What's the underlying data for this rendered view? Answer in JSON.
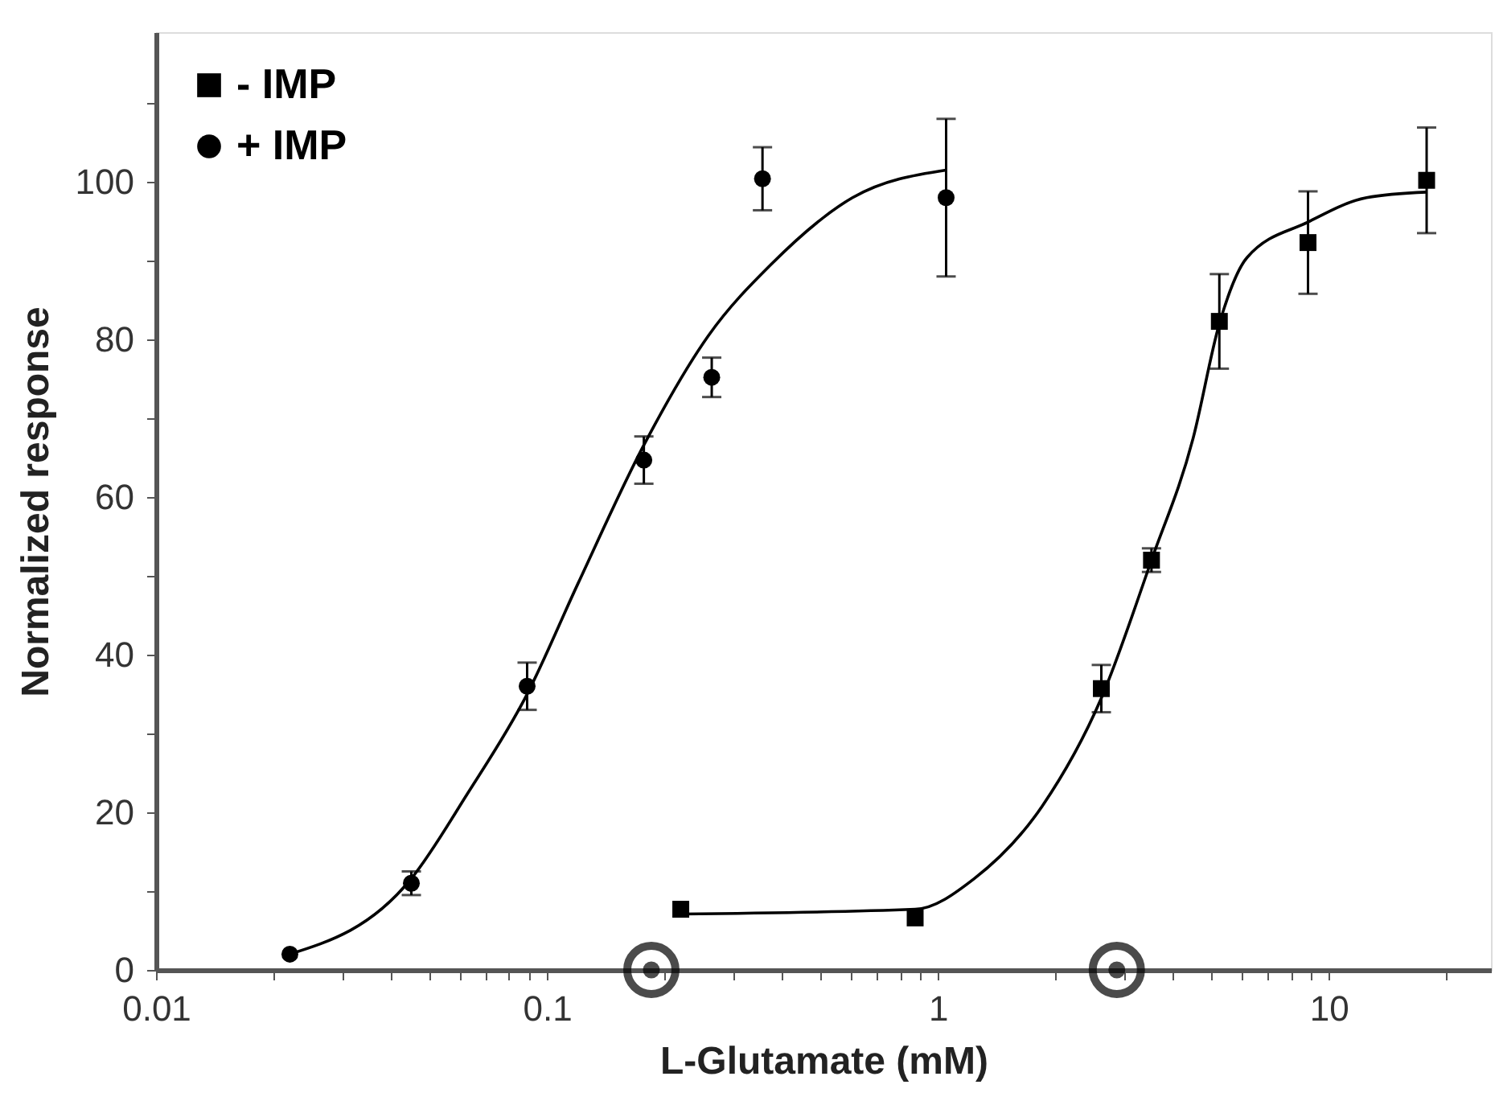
{
  "chart_data": {
    "type": "scatter",
    "xlabel": "L-Glutamate (mM)",
    "ylabel": "Normalized response",
    "log": "x",
    "xlim": [
      0.01,
      26
    ],
    "ylim": [
      0,
      119
    ],
    "xticks": [
      0.01,
      {
        "value": 0.02,
        "label": null
      },
      {
        "value": 0.03,
        "label": null
      },
      {
        "value": 0.04,
        "label": null
      },
      {
        "value": 0.05,
        "label": null
      },
      {
        "value": 0.06,
        "label": null
      },
      {
        "value": 0.07,
        "label": null
      },
      {
        "value": 0.08,
        "label": null
      },
      {
        "value": 0.09,
        "label": null
      },
      0.1,
      {
        "value": 0.2,
        "label": null
      },
      {
        "value": 0.3,
        "label": null
      },
      {
        "value": 0.4,
        "label": null
      },
      {
        "value": 0.5,
        "label": null
      },
      {
        "value": 0.6,
        "label": null
      },
      {
        "value": 0.7,
        "label": null
      },
      {
        "value": 0.8,
        "label": null
      },
      {
        "value": 0.9,
        "label": null
      },
      1,
      {
        "value": 2,
        "label": null
      },
      {
        "value": 3,
        "label": null
      },
      {
        "value": 4,
        "label": null
      },
      {
        "value": 5,
        "label": null
      },
      {
        "value": 6,
        "label": null
      },
      {
        "value": 7,
        "label": null
      },
      {
        "value": 8,
        "label": null
      },
      {
        "value": 9,
        "label": null
      },
      10,
      {
        "value": 20,
        "label": null
      }
    ],
    "yticks": [
      0,
      {
        "value": 10,
        "label": null
      },
      20,
      {
        "value": 30,
        "label": null
      },
      40,
      {
        "value": 50,
        "label": null
      },
      60,
      {
        "value": 70,
        "label": null
      },
      80,
      {
        "value": 90,
        "label": null
      },
      100,
      {
        "value": 110,
        "label": null
      }
    ],
    "grid": false,
    "legend": "top left",
    "series": [
      {
        "name": "- IMP",
        "marker": "square",
        "color": "#000000",
        "x": [
          0.22,
          0.875,
          2.62,
          3.52,
          5.25,
          8.85,
          17.8
        ],
        "values": [
          7.7,
          6.6,
          35.7,
          52,
          82.3,
          92.3,
          100.2
        ],
        "errors": [
          null,
          null,
          3,
          1.5,
          6,
          6.5,
          6.7
        ]
      },
      {
        "name": "+ IMP",
        "marker": "circle",
        "color": "#000000",
        "x": [
          0.022,
          0.045,
          0.089,
          0.177,
          0.264,
          0.356,
          1.05
        ],
        "values": [
          2,
          11,
          36,
          64.7,
          75.2,
          100.4,
          98
        ],
        "errors": [
          null,
          1.5,
          3,
          3,
          2.5,
          4,
          10
        ]
      },
      {
        "type": "line",
        "marker": "none",
        "line_style": "solid",
        "color": "#000000",
        "x": [
          0.22,
          0.875,
          1.24,
          1.85,
          2.62,
          3.52,
          4.5,
          5.25,
          6.18,
          8.85,
          12.5,
          17.8
        ],
        "values": [
          7.1,
          7.7,
          11.6,
          20.8,
          34.5,
          52,
          67.5,
          82,
          90.4,
          94.9,
          98,
          98.7
        ]
      },
      {
        "type": "line",
        "marker": "none",
        "line_style": "solid",
        "color": "#000000",
        "x": [
          0.022,
          0.045,
          0.0625,
          0.089,
          0.12,
          0.177,
          0.259,
          0.374,
          0.605,
          1.05
        ],
        "values": [
          2,
          11.6,
          22.3,
          35,
          49,
          66.6,
          80.5,
          89.5,
          98,
          101.5
        ]
      },
      {
        "marker": "circle",
        "color": "#000000",
        "x": [
          0.185,
          2.87
        ],
        "values": [
          0,
          0
        ]
      }
    ]
  }
}
